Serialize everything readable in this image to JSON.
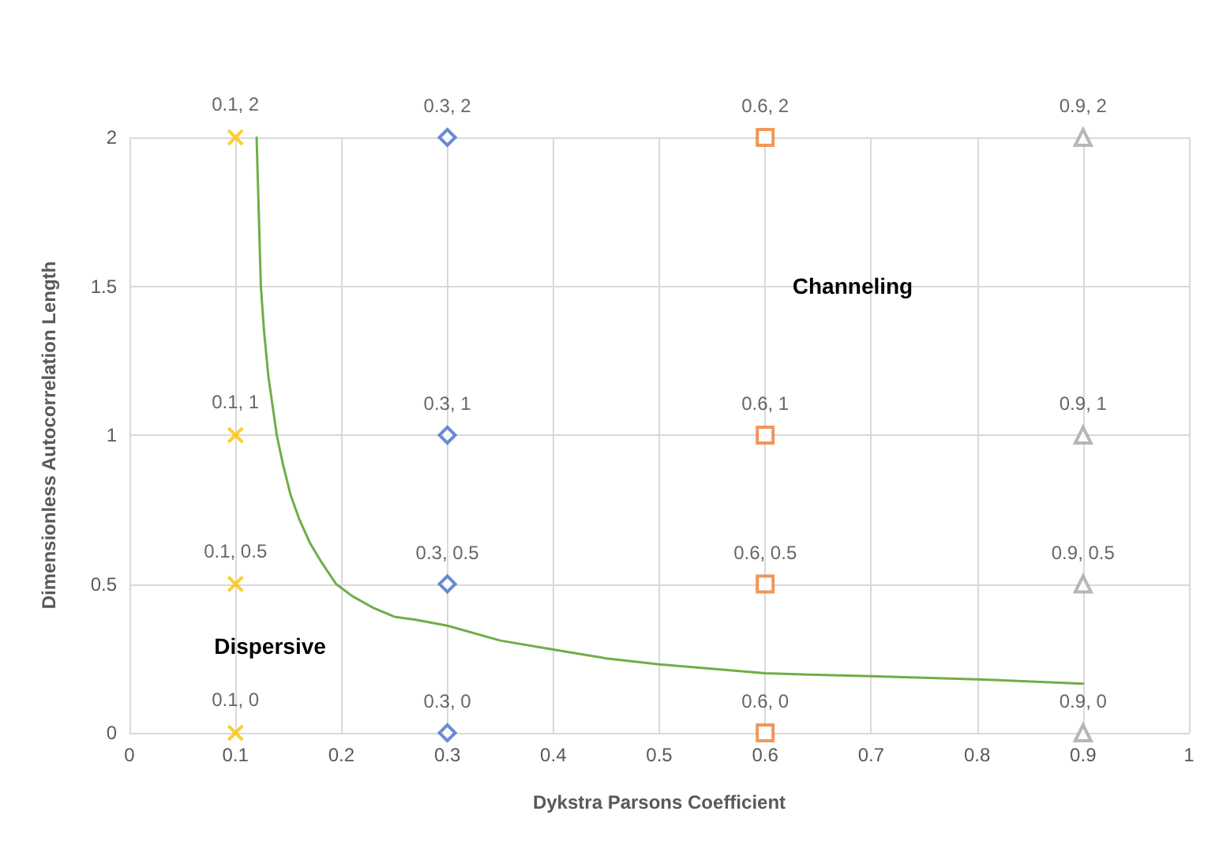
{
  "chart_data": {
    "type": "scatter",
    "xlabel": "Dykstra Parsons Coefficient",
    "ylabel": "Dimensionless Autocorrelation Length",
    "xlim": [
      0,
      1
    ],
    "xticks": [
      0,
      0.1,
      0.2,
      0.3,
      0.4,
      0.5,
      0.6,
      0.7,
      0.8,
      0.9,
      1
    ],
    "ylim": [
      0,
      2
    ],
    "yticks": [
      0,
      0.5,
      1,
      1.5,
      2
    ],
    "grid": true,
    "series": [
      {
        "color": "#ffc000",
        "marker": "cross",
        "x": [
          0.1,
          0.1,
          0.1,
          0.1
        ],
        "values": [
          0,
          0.5,
          1,
          2
        ],
        "value_labels": [
          "0.1, 0",
          "0.1, 0.5",
          "0.1, 1",
          "0.1, 2"
        ]
      },
      {
        "color": "#4472c4",
        "marker": "diamond",
        "x": [
          0.3,
          0.3,
          0.3,
          0.3
        ],
        "values": [
          0,
          0.5,
          1,
          2
        ],
        "value_labels": [
          "0.3, 0",
          "0.3, 0.5",
          "0.3, 1",
          "0.3, 2"
        ]
      },
      {
        "color": "#ed7d31",
        "marker": "square",
        "x": [
          0.6,
          0.6,
          0.6,
          0.6
        ],
        "values": [
          0,
          0.5,
          1,
          2
        ],
        "value_labels": [
          "0.6, 0",
          "0.6, 0.5",
          "0.6, 1",
          "0.6, 2"
        ]
      },
      {
        "color": "#a5a5a5",
        "marker": "triangle",
        "x": [
          0.9,
          0.9,
          0.9,
          0.9
        ],
        "values": [
          0,
          0.5,
          1,
          2
        ],
        "value_labels": [
          "0.9, 0",
          "0.9, 0.5",
          "0.9, 1",
          "0.9, 2"
        ]
      },
      {
        "type": "line",
        "color": "#70ad47",
        "marker": "none",
        "x": [
          0.12,
          0.122,
          0.124,
          0.127,
          0.131,
          0.135,
          0.139,
          0.145,
          0.152,
          0.16,
          0.17,
          0.18,
          0.195,
          0.21,
          0.23,
          0.25,
          0.27,
          0.3,
          0.35,
          0.4,
          0.45,
          0.5,
          0.6,
          0.7,
          0.8,
          0.9
        ],
        "values": [
          2,
          1.75,
          1.5,
          1.35,
          1.2,
          1.1,
          1,
          0.9,
          0.8,
          0.72,
          0.64,
          0.58,
          0.5,
          0.46,
          0.42,
          0.39,
          0.38,
          0.36,
          0.31,
          0.28,
          0.25,
          0.23,
          0.2,
          0.19,
          0.18,
          0.165
        ]
      }
    ],
    "annotations": [
      "Channeling",
      "Dispersive"
    ]
  }
}
